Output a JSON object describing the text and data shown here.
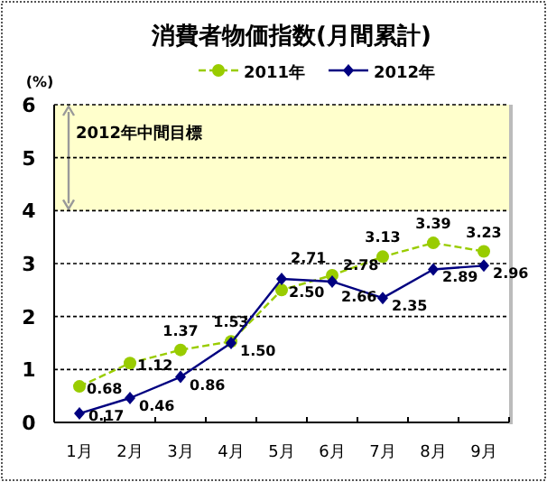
{
  "chart_data": {
    "type": "line",
    "title": "消費者物価指数(月間累計)",
    "ylabel": "(%)",
    "categories": [
      "1月",
      "2月",
      "3月",
      "4月",
      "5月",
      "6月",
      "7月",
      "8月",
      "9月"
    ],
    "series": [
      {
        "name": "2011年",
        "color": "#99cc00",
        "line_style": "dashed",
        "marker": "circle",
        "values": [
          0.68,
          1.12,
          1.37,
          1.53,
          2.5,
          2.78,
          3.13,
          3.39,
          3.23
        ],
        "value_labels": [
          "0.68",
          "1.12",
          "1.37",
          "1.53",
          "2.50",
          "2.78",
          "3.13",
          "3.39",
          "3.23"
        ]
      },
      {
        "name": "2012年",
        "color": "#000080",
        "line_style": "solid",
        "marker": "diamond",
        "values": [
          0.17,
          0.46,
          0.86,
          1.5,
          2.71,
          2.66,
          2.35,
          2.89,
          2.96
        ],
        "value_labels": [
          "0.17",
          "0.46",
          "0.86",
          "1.50",
          "2.71",
          "2.66",
          "2.35",
          "2.89",
          "2.96"
        ]
      }
    ],
    "bands": [
      {
        "axis": "y",
        "from": 4,
        "to": 6,
        "label": "2012年中間目標",
        "color": "#ffffcc"
      }
    ],
    "ylim": [
      0,
      6
    ],
    "yticks": [
      0,
      1,
      2,
      3,
      4,
      5,
      6
    ],
    "grid": "y",
    "legend": "top"
  }
}
